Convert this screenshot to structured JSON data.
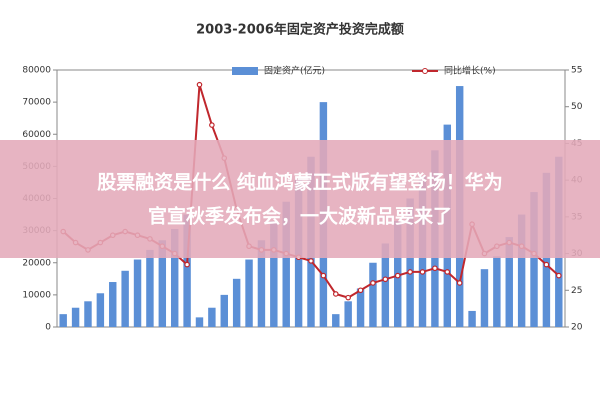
{
  "chart_data": {
    "type": "bar-line",
    "title": "2003-2006年固定资产投资完成额",
    "categories": [
      null,
      null,
      null,
      null,
      null,
      null,
      null,
      null,
      null,
      null,
      null,
      null,
      null,
      null,
      null,
      null,
      null,
      null,
      null,
      null,
      null,
      null,
      null,
      null,
      null,
      null,
      null,
      null,
      null,
      null,
      null,
      null,
      null,
      null,
      null,
      null,
      null,
      null,
      null,
      null,
      null
    ],
    "series": [
      {
        "name": "固定资产(亿元)",
        "color": "#5b8fd6",
        "values": [
          4000,
          6000,
          8000,
          10500,
          14000,
          17500,
          21000,
          24000,
          27000,
          30500,
          35000,
          3000,
          6000,
          10000,
          15000,
          21000,
          27000,
          33000,
          39000,
          46000,
          53000,
          70000,
          4000,
          8000,
          12000,
          20000,
          26000,
          33000,
          40000,
          47000,
          55000,
          63000,
          75000,
          5000,
          18000,
          22000,
          28000,
          35000,
          42000,
          48000,
          53000
        ]
      },
      {
        "name": "同比增长(%)",
        "color": "#c0272d",
        "axis": "y2",
        "values": [
          33,
          31.5,
          30.5,
          31.5,
          32.5,
          33,
          32.5,
          32,
          31,
          30,
          28.5,
          53,
          47.5,
          43,
          36,
          31,
          30.5,
          30.5,
          30,
          29.5,
          29,
          27,
          24.5,
          24,
          25,
          26,
          26.5,
          27,
          27.5,
          27.5,
          28,
          27.5,
          26,
          34,
          30,
          31,
          31.5,
          31,
          30,
          28.5,
          27
        ]
      }
    ],
    "ylim": [
      0,
      80000
    ],
    "yticks": [
      0,
      10000,
      20000,
      30000,
      40000,
      50000,
      60000,
      70000,
      80000
    ],
    "y2lim": [
      20,
      55
    ],
    "y2ticks": [
      20,
      25,
      30,
      35,
      40,
      45,
      50,
      55
    ]
  },
  "overlay": [
    "股票融资是什么 纯血鸿蒙正式版有望登场！华为",
    "官宣秋季发布会，一大波新品要来了"
  ]
}
